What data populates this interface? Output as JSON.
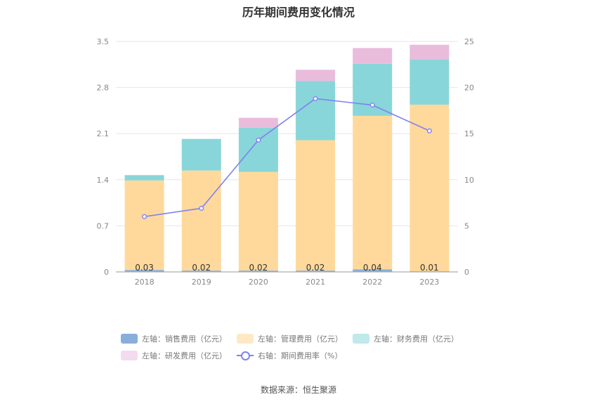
{
  "chart_data": {
    "type": "bar",
    "title": "历年期间费用变化情况",
    "categories": [
      "2018",
      "2019",
      "2020",
      "2021",
      "2022",
      "2023"
    ],
    "left_axis": {
      "ticks": [
        "0",
        "0.7",
        "1.4",
        "2.1",
        "2.8",
        "3.5"
      ],
      "ylim": [
        0,
        3.5
      ]
    },
    "right_axis": {
      "ticks": [
        "0",
        "5",
        "10",
        "15",
        "20",
        "25"
      ],
      "ylim": [
        0,
        25
      ]
    },
    "stacked": true,
    "series": [
      {
        "name": "左轴：销售费用（亿元）",
        "values": [
          0.03,
          0.02,
          0.02,
          0.02,
          0.04,
          0.01
        ],
        "color": "#8aaedb",
        "labels": [
          "0.03",
          "0.02",
          "0.02",
          "0.02",
          "0.04",
          "0.01"
        ]
      },
      {
        "name": "左轴：管理费用（亿元）",
        "values": [
          1.36,
          1.52,
          1.5,
          1.98,
          2.33,
          2.53
        ],
        "color": "#ffd99b"
      },
      {
        "name": "左轴：财务费用（亿元）",
        "values": [
          0.08,
          0.48,
          0.67,
          0.9,
          0.79,
          0.69
        ],
        "color": "#88d6d9"
      },
      {
        "name": "左轴：研发费用（亿元）",
        "values": [
          0.0,
          0.0,
          0.15,
          0.17,
          0.24,
          0.22
        ],
        "color": "#e9bcdc"
      }
    ],
    "line_series": {
      "name": "右轴：期间费用率（%）",
      "values": [
        6.0,
        6.9,
        14.3,
        18.8,
        18.1,
        15.3
      ],
      "color": "#7f82f0"
    },
    "legend_position": "bottom"
  },
  "legend": {
    "sales": "左轴：销售费用（亿元）",
    "admin": "左轴：管理费用（亿元）",
    "finance": "左轴：财务费用（亿元）",
    "rnd": "左轴：研发费用（亿元）",
    "rate": "右轴：期间费用率（%）"
  },
  "legend_colors": {
    "sales": "#8aaedb",
    "admin": "#ffe9c4",
    "finance": "#bfe9ea",
    "rnd": "#f3dcef"
  },
  "source": "数据来源：恒生聚源"
}
